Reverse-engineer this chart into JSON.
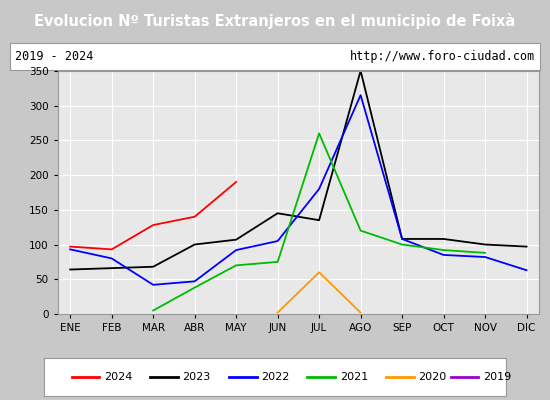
{
  "title": "Evolucion Nº Turistas Extranjeros en el municipio de Foixà",
  "subtitle_left": "2019 - 2024",
  "subtitle_right": "http://www.foro-ciudad.com",
  "months": [
    "ENE",
    "FEB",
    "MAR",
    "ABR",
    "MAY",
    "JUN",
    "JUL",
    "AGO",
    "SEP",
    "OCT",
    "NOV",
    "DIC"
  ],
  "series": {
    "2024": [
      97,
      93,
      128,
      140,
      190,
      null,
      null,
      null,
      null,
      null,
      null,
      null
    ],
    "2023": [
      64,
      66,
      68,
      100,
      107,
      145,
      135,
      350,
      108,
      108,
      100,
      97
    ],
    "2022": [
      93,
      80,
      42,
      47,
      92,
      105,
      180,
      315,
      108,
      85,
      82,
      63
    ],
    "2021": [
      null,
      null,
      5,
      38,
      70,
      75,
      260,
      120,
      100,
      92,
      88,
      null
    ],
    "2020": [
      null,
      null,
      null,
      null,
      null,
      2,
      60,
      2,
      null,
      null,
      null,
      null
    ],
    "2019": [
      null,
      null,
      null,
      null,
      null,
      null,
      null,
      null,
      null,
      null,
      null,
      null
    ]
  },
  "colors": {
    "2024": "#ff0000",
    "2023": "#000000",
    "2022": "#0000ff",
    "2021": "#00bb00",
    "2020": "#ff9900",
    "2019": "#9900cc"
  },
  "ylim": [
    0,
    350
  ],
  "yticks": [
    0,
    50,
    100,
    150,
    200,
    250,
    300,
    350
  ],
  "title_bg": "#3a7abf",
  "title_color": "#ffffff",
  "subtitle_bg": "#ffffff",
  "plot_bg": "#e8e8e8",
  "outer_bg": "#c8c8c8",
  "legend_years": [
    "2024",
    "2023",
    "2022",
    "2021",
    "2020",
    "2019"
  ]
}
